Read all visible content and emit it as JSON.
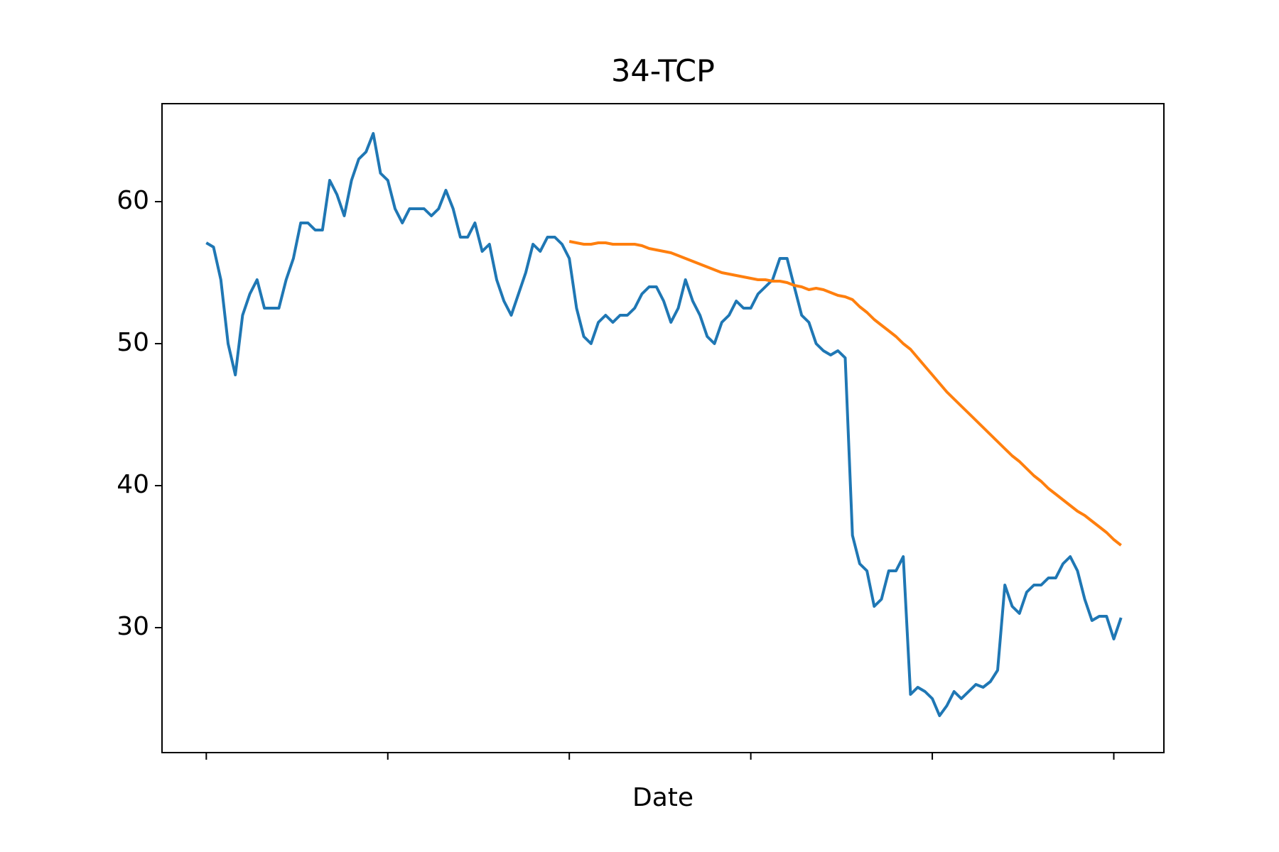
{
  "chart_data": {
    "type": "line",
    "title": "34-TCP",
    "xlabel": "Date",
    "xlim": [
      -6.1,
      131.9
    ],
    "xticks": [
      0,
      25,
      50,
      75,
      100,
      125
    ],
    "ylim": [
      21.2,
      66.9
    ],
    "yticks": [
      30,
      40,
      50,
      60
    ],
    "grid": false,
    "series": [
      {
        "color": "#1f77b4",
        "values": [
          57.1,
          56.8,
          54.5,
          50,
          47.8,
          52,
          53.5,
          54.5,
          52.5,
          52.5,
          52.5,
          54.5,
          56,
          58.5,
          58.5,
          58,
          58,
          61.5,
          60.5,
          59,
          61.5,
          63,
          63.5,
          64.8,
          62,
          61.5,
          59.5,
          58.5,
          59.5,
          59.5,
          59.5,
          59,
          59.5,
          60.8,
          59.5,
          57.5,
          57.5,
          58.5,
          56.5,
          57,
          54.5,
          53,
          52,
          53.5,
          55,
          57,
          56.5,
          57.5,
          57.5,
          57,
          56,
          52.5,
          50.5,
          50,
          51.5,
          52,
          51.5,
          52,
          52,
          52.5,
          53.5,
          54,
          54,
          53,
          51.5,
          52.5,
          54.5,
          53,
          52,
          50.5,
          50,
          51.5,
          52,
          53,
          52.5,
          52.5,
          53.5,
          54,
          54.5,
          56,
          56,
          54,
          52,
          51.5,
          50,
          49.5,
          49.2,
          49.5,
          49,
          36.5,
          34.5,
          34,
          31.5,
          32,
          34,
          34,
          35,
          25.3,
          25.8,
          25.5,
          25,
          23.8,
          24.5,
          25.5,
          25,
          25.5,
          26,
          25.8,
          26.2,
          27,
          33,
          31.5,
          31,
          32.5,
          33,
          33,
          33.5,
          33.5,
          34.5,
          35,
          34,
          32,
          30.5,
          30.8,
          30.8,
          29.2,
          30.7
        ]
      },
      {
        "color": "#ff7f0e",
        "values": [
          null,
          null,
          null,
          null,
          null,
          null,
          null,
          null,
          null,
          null,
          null,
          null,
          null,
          null,
          null,
          null,
          null,
          null,
          null,
          null,
          null,
          null,
          null,
          null,
          null,
          null,
          null,
          null,
          null,
          null,
          null,
          null,
          null,
          null,
          null,
          null,
          null,
          null,
          null,
          null,
          null,
          null,
          null,
          null,
          null,
          null,
          null,
          null,
          null,
          null,
          57.2,
          57.1,
          57.0,
          57.0,
          57.1,
          57.1,
          57.0,
          57.0,
          57.0,
          57.0,
          56.9,
          56.7,
          56.6,
          56.5,
          56.4,
          56.2,
          56.0,
          55.8,
          55.6,
          55.4,
          55.2,
          55.0,
          54.9,
          54.8,
          54.7,
          54.6,
          54.5,
          54.5,
          54.4,
          54.4,
          54.3,
          54.1,
          54.0,
          53.8,
          53.9,
          53.8,
          53.6,
          53.4,
          53.3,
          53.1,
          52.6,
          52.2,
          51.7,
          51.3,
          50.9,
          50.5,
          50.0,
          49.6,
          49.0,
          48.4,
          47.8,
          47.2,
          46.6,
          46.1,
          45.6,
          45.1,
          44.6,
          44.1,
          43.6,
          43.1,
          42.6,
          42.1,
          41.7,
          41.2,
          40.7,
          40.3,
          39.8,
          39.4,
          39.0,
          38.6,
          38.2,
          37.9,
          37.5,
          37.1,
          36.7,
          36.2,
          35.8
        ]
      }
    ]
  }
}
